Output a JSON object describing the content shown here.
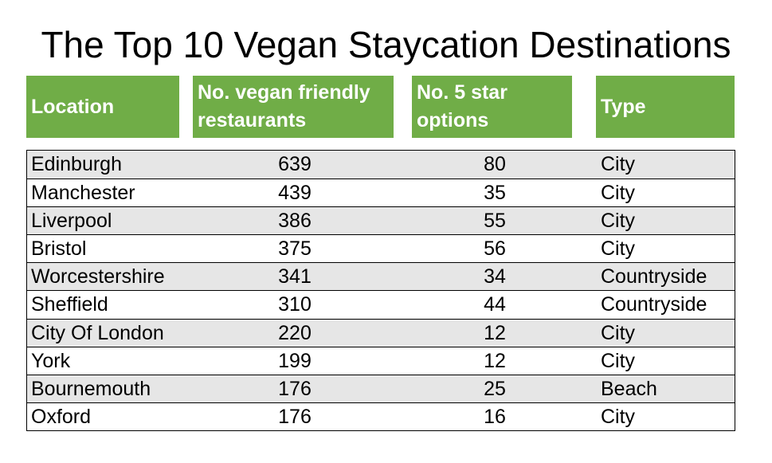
{
  "chart_data": {
    "type": "table",
    "title": "The Top 10 Vegan Staycation Destinations",
    "columns": [
      "Location",
      "No. vegan friendly restaurants",
      "No. 5 star options",
      "Type"
    ],
    "rows": [
      [
        "Edinburgh",
        "639",
        "80",
        "City"
      ],
      [
        "Manchester",
        "439",
        "35",
        "City"
      ],
      [
        "Liverpool",
        "386",
        "55",
        "City"
      ],
      [
        "Bristol",
        "375",
        "56",
        "City"
      ],
      [
        "Worcestershire",
        "341",
        "34",
        "Countryside"
      ],
      [
        "Sheffield",
        "310",
        "44",
        "Countryside"
      ],
      [
        "City Of London",
        "220",
        "12",
        "City"
      ],
      [
        "York",
        "199",
        "12",
        "City"
      ],
      [
        "Bournemouth",
        "176",
        "25",
        "Beach"
      ],
      [
        "Oxford",
        "176",
        "16",
        "City"
      ]
    ]
  },
  "colors": {
    "header_bg": "#70ad47",
    "alt_row": "#e6e6e6"
  }
}
